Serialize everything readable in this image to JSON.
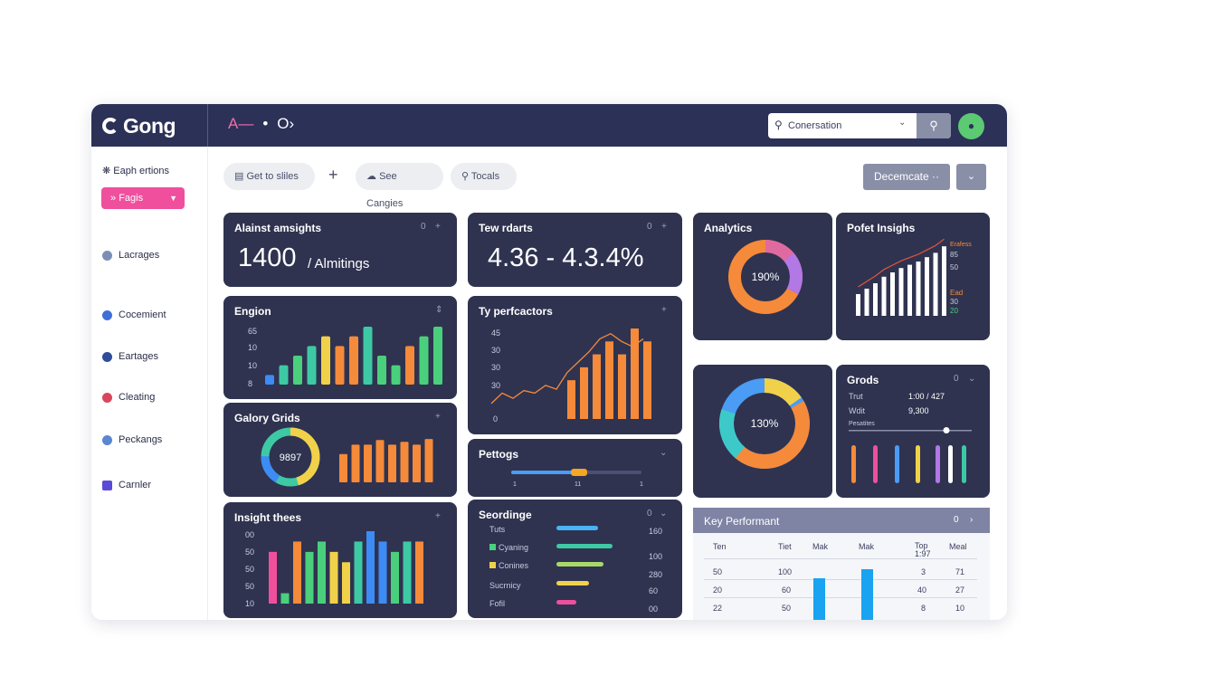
{
  "app": {
    "logo": "Gong",
    "nav_a": "A—",
    "nav_dot": "•",
    "nav_arrows": "O›"
  },
  "search": {
    "value": "Conersation"
  },
  "sidebar": {
    "header": "Eaph ertions",
    "button": "Fagis",
    "items": [
      {
        "label": "Lacrages",
        "color": "#7a8fb3"
      },
      {
        "label": "Cocemient",
        "color": "#3f6fd6"
      },
      {
        "label": "Eartages",
        "color": "#2f4d9a"
      },
      {
        "label": "Cleating",
        "color": "#d8475c"
      },
      {
        "label": "Peckangs",
        "color": "#5b86d1"
      },
      {
        "label": "Carnler",
        "color": "#5a4bd6"
      }
    ]
  },
  "toolbar": {
    "pills": [
      "Get to sliles",
      "See Cangies",
      "Tocals"
    ],
    "deco": "Decemcate ··"
  },
  "cards": {
    "c1": {
      "title": "Alainst amsights",
      "value": "1400",
      "suffix": "/ Almitings"
    },
    "c2": {
      "title": "Tew rdarts",
      "value": "4.36 - 4.3.4%"
    },
    "c3": {
      "title": "Analytics",
      "center": "190%"
    },
    "c4": {
      "title": "Pofet Insighs",
      "legend": [
        "Erafess",
        "85",
        "50",
        "Ead",
        "30",
        "20"
      ]
    },
    "c5": {
      "title": "Engion",
      "ticks": [
        "65",
        "10",
        "10",
        "8"
      ]
    },
    "c6": {
      "title": "Ty perfcactors",
      "ticks": [
        "45",
        "30",
        "30",
        "30",
        "0"
      ]
    },
    "c7": {
      "title": "Galory Grids",
      "center": "9897"
    },
    "c8": {
      "title": "Pettogs",
      "ticks": [
        "1",
        "11",
        "1"
      ]
    },
    "c9": {
      "title": "Insight thees",
      "ticks": [
        "00",
        "50",
        "50",
        "50",
        "10"
      ]
    },
    "c10": {
      "title": "Seordinge",
      "rows": [
        {
          "label": "Tuts",
          "value": "160"
        },
        {
          "label": "Cyaning",
          "value": "100"
        },
        {
          "label": "Conines",
          "value": "280"
        },
        {
          "label": "Sucrnicy",
          "value": "60"
        },
        {
          "label": "Fofil",
          "value": "00"
        }
      ]
    },
    "c11": {
      "center": "130%"
    },
    "c12": {
      "title": "Grods",
      "row1_label": "Trut",
      "row1_value": "1:00 / 427",
      "row2_label": "Wdit",
      "row2_value": "9,300",
      "slider_label": "Pesatites"
    }
  },
  "table": {
    "title": "Key Performant",
    "headers": [
      "Ten",
      "Tiet",
      "Mak",
      "Mak",
      "Top 1:97",
      "Meal"
    ],
    "rows": [
      [
        "50",
        "100",
        "",
        "",
        "3",
        "71"
      ],
      [
        "20",
        "60",
        "",
        "",
        "40",
        "27"
      ],
      [
        "22",
        "50",
        "",
        "",
        "8",
        "10"
      ]
    ]
  },
  "chart_data": [
    {
      "type": "bar",
      "title": "Engion",
      "values": [
        1,
        2,
        3,
        4,
        5,
        4,
        5,
        6,
        3,
        2,
        4,
        5,
        6
      ],
      "colors": [
        "#3d8bf5",
        "#3ec9a5",
        "#4ad07c",
        "#3ec9a5",
        "#f2d14a",
        "#f58a3a",
        "#f58a3a",
        "#3ec9a5",
        "#4ad07c",
        "#4ad07c",
        "#f58a3a",
        "#4ad07c",
        "#4ad07c"
      ]
    },
    {
      "type": "line+bar",
      "title": "Ty perfcactors",
      "bars": [
        3,
        4,
        5,
        6,
        5,
        7,
        6
      ],
      "line": [
        1.2,
        2,
        1.6,
        2.2,
        2,
        2.6,
        2.3,
        3.6,
        4.4,
        5.2,
        6.2,
        6.6,
        6,
        5.6,
        6.2
      ]
    },
    {
      "type": "bar",
      "title": "Galory Grids",
      "values": [
        3,
        4,
        4,
        4.5,
        4,
        4.3,
        4,
        4.6
      ]
    },
    {
      "type": "bar",
      "title": "Insight thees",
      "values": [
        5,
        1,
        6,
        5,
        6,
        5,
        4,
        6,
        7,
        6,
        5,
        6,
        6
      ],
      "colors": [
        "#ef4f9d",
        "#4ad07c",
        "#f58a3a",
        "#4ad07c",
        "#4ad07c",
        "#f2d14a",
        "#f2d14a",
        "#3ec9a5",
        "#3d8bf5",
        "#3d8bf5",
        "#4ad07c",
        "#3ec9a5",
        "#f58a3a"
      ]
    },
    {
      "type": "bar",
      "title": "Pofet Insighs",
      "values": [
        2,
        2.5,
        3,
        3.6,
        4,
        4.4,
        4.7,
        5,
        5.4,
        5.8,
        6.4
      ]
    }
  ]
}
